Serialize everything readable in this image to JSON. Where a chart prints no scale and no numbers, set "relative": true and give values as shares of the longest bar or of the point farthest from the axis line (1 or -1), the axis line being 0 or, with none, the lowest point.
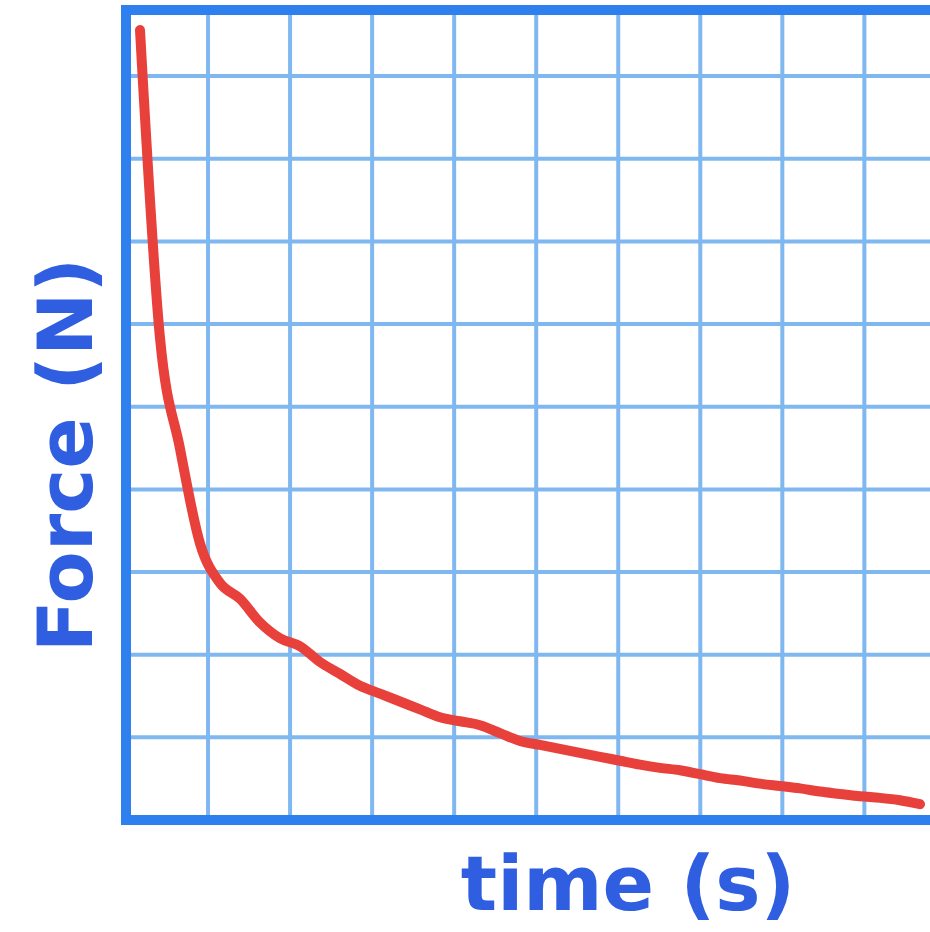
{
  "chart_data": {
    "type": "line",
    "xlabel": "time (s)",
    "ylabel": "Force (N)",
    "relative": true,
    "grid": true,
    "categories": [
      null,
      null,
      null,
      null,
      null,
      null,
      null,
      null,
      null,
      null,
      null,
      null,
      null,
      null,
      null,
      null,
      null,
      null,
      null,
      null,
      null,
      null,
      null,
      null,
      null,
      null,
      null,
      null,
      null,
      null,
      null,
      null,
      null,
      null,
      null,
      null,
      null,
      null,
      null,
      null
    ],
    "series": [
      {
        "color": "#e8403a",
        "values": [
          1,
          0.61,
          0.47,
          0.35,
          0.3,
          0.28,
          0.25,
          0.23,
          0.22,
          0.2,
          0.185,
          0.17,
          0.16,
          0.15,
          0.14,
          0.13,
          0.125,
          0.12,
          0.11,
          0.1,
          0.095,
          0.09,
          0.085,
          0.08,
          0.075,
          0.07,
          0.066,
          0.063,
          0.058,
          0.053,
          0.05,
          0.046,
          0.043,
          0.04,
          0.036,
          0.033,
          0.03,
          0.028,
          0.025,
          0.02
        ]
      }
    ]
  }
}
